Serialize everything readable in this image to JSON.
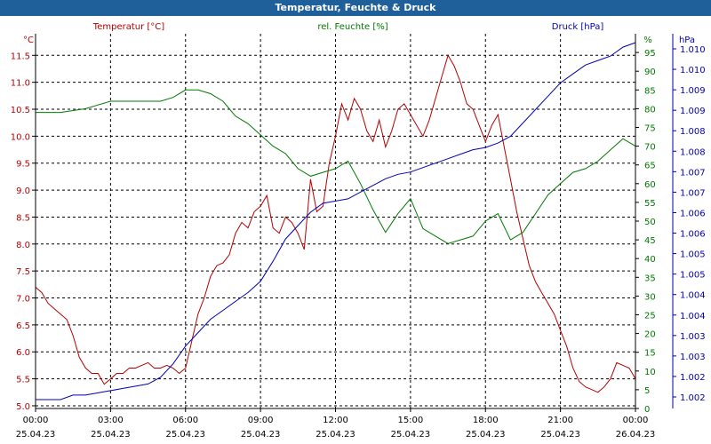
{
  "window": {
    "title": "Temperatur, Feuchte & Druck"
  },
  "colors": {
    "temperature": "#b40000",
    "humidity": "#007800",
    "pressure": "#0000b4",
    "grid": "#000000",
    "axis": "#000000"
  },
  "chart_data": {
    "type": "line",
    "x_ticks": [
      {
        "time": "00:00",
        "date": "25.04.23"
      },
      {
        "time": "03:00",
        "date": "25.04.23"
      },
      {
        "time": "06:00",
        "date": "25.04.23"
      },
      {
        "time": "09:00",
        "date": "25.04.23"
      },
      {
        "time": "12:00",
        "date": "25.04.23"
      },
      {
        "time": "15:00",
        "date": "25.04.23"
      },
      {
        "time": "18:00",
        "date": "25.04.23"
      },
      {
        "time": "21:00",
        "date": "25.04.23"
      },
      {
        "time": "00:00",
        "date": "26.04.23"
      }
    ],
    "x_range_hours": [
      0,
      24
    ],
    "axes": {
      "temperature": {
        "unit_label": "°C",
        "legend": "Temperatur [°C]",
        "range": [
          4.95,
          11.9
        ],
        "ticks": [
          "5.0",
          "5.5",
          "6.0",
          "6.5",
          "7.0",
          "7.5",
          "8.0",
          "8.5",
          "9.0",
          "9.5",
          "10.0",
          "10.5",
          "11.0",
          "11.5"
        ]
      },
      "humidity": {
        "unit_label": "%",
        "legend": "rel. Feuchte [%]",
        "range": [
          0,
          100
        ],
        "ticks": [
          "0",
          "5",
          "10",
          "15",
          "20",
          "25",
          "30",
          "35",
          "40",
          "45",
          "50",
          "55",
          "60",
          "65",
          "70",
          "75",
          "80",
          "85",
          "90",
          "95"
        ]
      },
      "pressure": {
        "unit_label": "hPa",
        "legend": "Druck [hPa]",
        "range": [
          1001.8,
          1010.2
        ],
        "ticks": [
          "1.002",
          "1.002",
          "1.003",
          "1.003",
          "1.004",
          "1.004",
          "1.005",
          "1.005",
          "1.006",
          "1.006",
          "1.007",
          "1.007",
          "1.008",
          "1.008",
          "1.009",
          "1.009",
          "1.010",
          "1.010"
        ]
      }
    },
    "series": [
      {
        "name": "Temperatur [°C]",
        "axis": "temperature",
        "x": [
          0,
          0.25,
          0.5,
          0.75,
          1,
          1.25,
          1.5,
          1.75,
          2,
          2.25,
          2.5,
          2.75,
          3,
          3.25,
          3.5,
          3.75,
          4,
          4.25,
          4.5,
          4.75,
          5,
          5.25,
          5.5,
          5.75,
          6,
          6.25,
          6.5,
          6.75,
          7,
          7.25,
          7.5,
          7.75,
          8,
          8.25,
          8.5,
          8.75,
          9,
          9.25,
          9.5,
          9.75,
          10,
          10.25,
          10.5,
          10.75,
          11,
          11.25,
          11.5,
          11.75,
          12,
          12.25,
          12.5,
          12.75,
          13,
          13.25,
          13.5,
          13.75,
          14,
          14.25,
          14.5,
          14.75,
          15,
          15.25,
          15.5,
          15.75,
          16,
          16.25,
          16.5,
          16.75,
          17,
          17.25,
          17.5,
          17.75,
          18,
          18.25,
          18.5,
          18.75,
          19,
          19.25,
          19.5,
          19.75,
          20,
          20.25,
          20.5,
          20.75,
          21,
          21.25,
          21.5,
          21.75,
          22,
          22.25,
          22.5,
          22.75,
          23,
          23.25,
          23.5,
          23.75,
          24
        ],
        "values": [
          7.2,
          7.1,
          6.9,
          6.8,
          6.7,
          6.6,
          6.3,
          5.9,
          5.7,
          5.6,
          5.6,
          5.4,
          5.5,
          5.6,
          5.6,
          5.7,
          5.7,
          5.75,
          5.8,
          5.7,
          5.7,
          5.75,
          5.7,
          5.6,
          5.7,
          6.2,
          6.7,
          7.0,
          7.4,
          7.6,
          7.65,
          7.8,
          8.2,
          8.4,
          8.3,
          8.6,
          8.7,
          8.9,
          8.3,
          8.2,
          8.5,
          8.4,
          8.2,
          7.9,
          9.2,
          8.6,
          8.7,
          9.5,
          10.0,
          10.6,
          10.3,
          10.7,
          10.5,
          10.1,
          9.9,
          10.3,
          9.8,
          10.1,
          10.5,
          10.6,
          10.4,
          10.2,
          10.0,
          10.3,
          10.7,
          11.1,
          11.5,
          11.3,
          11.0,
          10.6,
          10.5,
          10.2,
          9.9,
          10.2,
          10.4,
          9.8,
          9.2,
          8.6,
          8.1,
          7.6,
          7.3,
          7.1,
          6.9,
          6.7,
          6.4,
          6.1,
          5.7,
          5.45,
          5.35,
          5.3,
          5.25,
          5.35,
          5.5,
          5.8,
          5.75,
          5.7,
          5.5
        ]
      },
      {
        "name": "rel. Feuchte [%]",
        "axis": "humidity",
        "x": [
          0,
          0.5,
          1,
          1.5,
          2,
          2.5,
          3,
          3.5,
          4,
          4.5,
          5,
          5.5,
          6,
          6.5,
          7,
          7.5,
          8,
          8.5,
          9,
          9.5,
          10,
          10.5,
          11,
          11.5,
          12,
          12.5,
          13,
          13.5,
          14,
          14.5,
          15,
          15.5,
          16,
          16.5,
          17,
          17.5,
          18,
          18.5,
          19,
          19.5,
          20,
          20.5,
          21,
          21.5,
          22,
          22.5,
          23,
          23.5,
          24
        ],
        "values": [
          79,
          79,
          79,
          79.5,
          80,
          81,
          82,
          82,
          82,
          82,
          82,
          83,
          85,
          85,
          84,
          82,
          78,
          76,
          73,
          70,
          68,
          64,
          62,
          63,
          64,
          66,
          60,
          53,
          47,
          52,
          56,
          48,
          46,
          44,
          45,
          46,
          50,
          52,
          45,
          47,
          52,
          57,
          60,
          63,
          64,
          66,
          69,
          72,
          70
        ]
      },
      {
        "name": "Druck [hPa]",
        "axis": "pressure",
        "x": [
          0,
          0.5,
          1,
          1.5,
          2,
          2.5,
          3,
          3.5,
          4,
          4.5,
          5,
          5.5,
          6,
          6.5,
          7,
          7.5,
          8,
          8.5,
          9,
          9.5,
          10,
          10.5,
          11,
          11.5,
          12,
          12.5,
          13,
          13.5,
          14,
          14.5,
          15,
          15.5,
          16,
          16.5,
          17,
          17.5,
          18,
          18.5,
          19,
          19.5,
          20,
          20.5,
          21,
          21.5,
          22,
          22.5,
          23,
          23.5,
          24
        ],
        "values": [
          1002.0,
          1002.0,
          1002.0,
          1002.1,
          1002.1,
          1002.15,
          1002.2,
          1002.25,
          1002.3,
          1002.35,
          1002.5,
          1002.8,
          1003.2,
          1003.5,
          1003.8,
          1004.0,
          1004.2,
          1004.4,
          1004.65,
          1005.1,
          1005.6,
          1005.9,
          1006.2,
          1006.4,
          1006.45,
          1006.5,
          1006.65,
          1006.8,
          1006.95,
          1007.05,
          1007.1,
          1007.2,
          1007.3,
          1007.4,
          1007.5,
          1007.6,
          1007.65,
          1007.75,
          1007.9,
          1008.2,
          1008.5,
          1008.8,
          1009.1,
          1009.3,
          1009.5,
          1009.6,
          1009.7,
          1009.9,
          1010.0
        ]
      }
    ],
    "grid": true
  }
}
